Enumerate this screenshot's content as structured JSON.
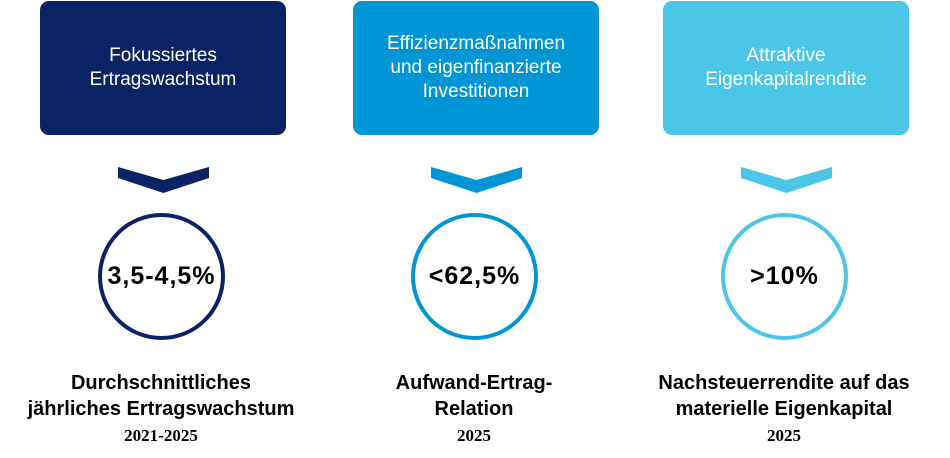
{
  "columns": [
    {
      "box_text": "Fokussiertes\nErtragswachstum",
      "color": "#0b2265",
      "value": "3,5-4,5%",
      "label": "Durchschnittliches\njährliches Ertragswachstum",
      "year": "2021-2025"
    },
    {
      "box_text": "Effizienzmaßnahmen\nund eigenfinanzierte\nInvestitionen",
      "color": "#0096d6",
      "value": "<62,5%",
      "label": "Aufwand-Ertrag-\nRelation",
      "year": "2025"
    },
    {
      "box_text": "Attraktive\nEigenkapitalrendite",
      "color": "#4cc6e6",
      "value": ">10%",
      "label": "Nachsteuerrendite auf das\nmaterielle Eigenkapital",
      "year": "2025"
    }
  ]
}
